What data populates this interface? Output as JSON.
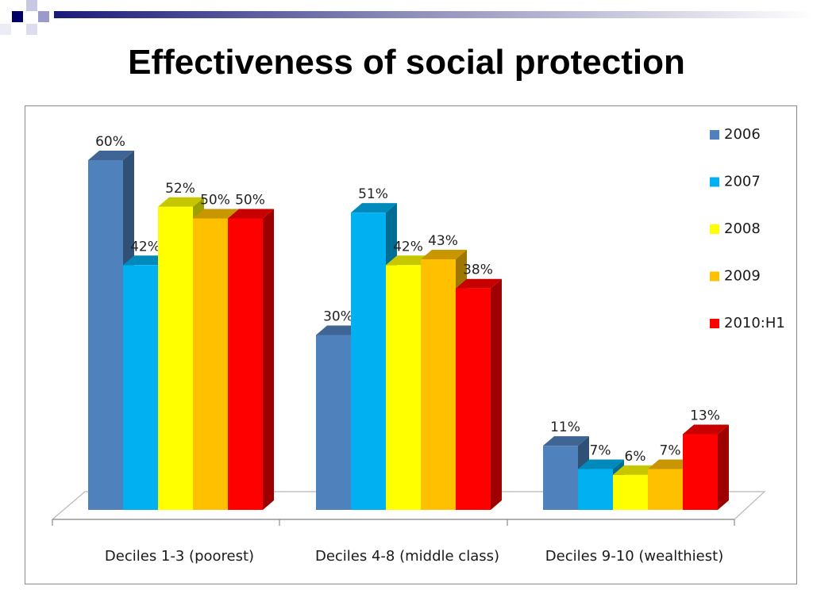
{
  "slide": {
    "title": "Effectiveness of social protection"
  },
  "theme": {
    "banner_dark": "#000066",
    "banner_mid": "#6666aa",
    "banner_light": "#e6e6f2"
  },
  "chart_data": {
    "type": "bar",
    "categories": [
      "Deciles 1-3 (poorest)",
      "Deciles 4-8 (middle class)",
      "Deciles 9-10 (wealthiest)"
    ],
    "series": [
      {
        "name": "2006",
        "values": [
          60,
          30,
          11
        ],
        "labels": [
          "60%",
          "30%",
          "11%"
        ],
        "color": "#4f81bd"
      },
      {
        "name": "2007",
        "values": [
          42,
          51,
          7
        ],
        "labels": [
          "42%",
          "51%",
          "7%"
        ],
        "color": "#00b0f0"
      },
      {
        "name": "2008",
        "values": [
          52,
          42,
          6
        ],
        "labels": [
          "52%",
          "42%",
          "6%"
        ],
        "color": "#ffff00"
      },
      {
        "name": "2009",
        "values": [
          50,
          43,
          7
        ],
        "labels": [
          "50%",
          "43%",
          "7%"
        ],
        "color": "#ffc000"
      },
      {
        "name": "2010:H1",
        "values": [
          50,
          38,
          13
        ],
        "labels": [
          "50%",
          "38%",
          "13%"
        ],
        "color": "#ff0000"
      }
    ],
    "ylim": [
      0,
      70
    ],
    "grid": false,
    "legend_position": "right",
    "three_d": true
  }
}
